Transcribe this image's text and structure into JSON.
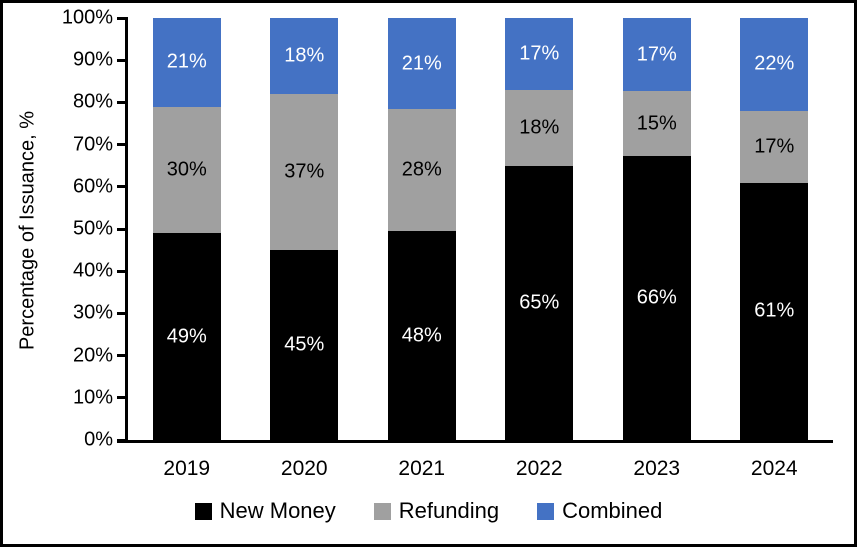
{
  "figure": {
    "title": "",
    "background_color": "#FFFFFF",
    "border_color": "#000000"
  },
  "chart_data": {
    "type": "bar",
    "stacked": true,
    "orientation": "vertical",
    "categories": [
      "2019",
      "2020",
      "2021",
      "2022",
      "2023",
      "2024"
    ],
    "series": [
      {
        "name": "New Money",
        "color": "#000000",
        "label_color": "#FFFFFF",
        "values": [
          49,
          45,
          48,
          65,
          66,
          61
        ]
      },
      {
        "name": "Refunding",
        "color": "#A0A0A0",
        "label_color": "#000000",
        "values": [
          30,
          37,
          28,
          18,
          15,
          17
        ]
      },
      {
        "name": "Combined",
        "color": "#4472C4",
        "label_color": "#FFFFFF",
        "values": [
          21,
          18,
          21,
          17,
          17,
          22
        ]
      }
    ],
    "data_labels_suffix": "%",
    "xlabel": "",
    "ylabel": "Percentage of Issuance, %",
    "ylim": [
      0,
      100
    ],
    "ytick_step": 10,
    "ytick_labels": [
      "0%",
      "10%",
      "20%",
      "30%",
      "40%",
      "50%",
      "60%",
      "70%",
      "80%",
      "90%",
      "100%"
    ],
    "grid": false,
    "legend_position": "bottom"
  }
}
